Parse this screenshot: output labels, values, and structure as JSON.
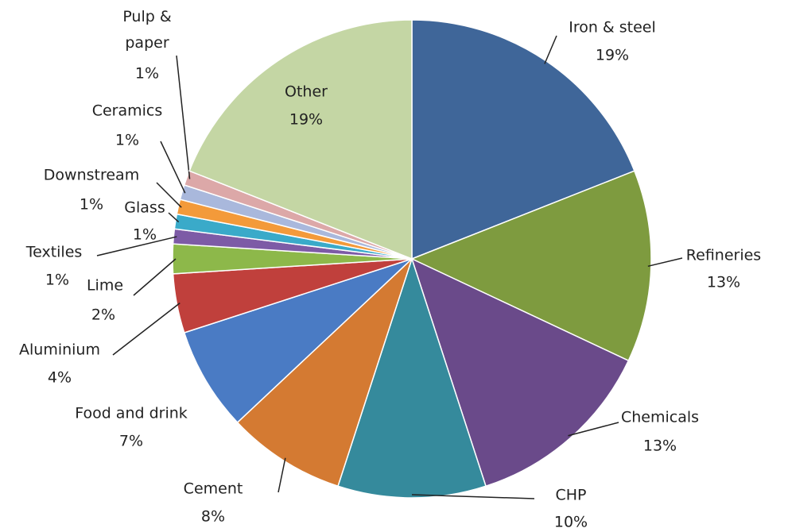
{
  "chart_data": {
    "type": "pie",
    "categories": [
      "Iron & steel",
      "Refineries",
      "Chemicals",
      "CHP",
      "Cement",
      "Food and drink",
      "Aluminium",
      "Lime",
      "Textiles",
      "Glass",
      "Downstream",
      "Ceramics",
      "Pulp & paper",
      "Other"
    ],
    "values": [
      19,
      13,
      13,
      10,
      8,
      7,
      4,
      2,
      1,
      1,
      1,
      1,
      1,
      19
    ],
    "value_labels": [
      "19%",
      "13%",
      "13%",
      "10%",
      "8%",
      "7%",
      "4%",
      "2%",
      "1%",
      "1%",
      "1%",
      "1%",
      "1%",
      "19%"
    ],
    "colors": [
      "#3f6699",
      "#7e9b3f",
      "#6a4a8a",
      "#358a9c",
      "#d47a32",
      "#4a7bc4",
      "#c0403c",
      "#8db84a",
      "#7d5ba6",
      "#3aaac9",
      "#f39a3a",
      "#a9b8dc",
      "#dca8a8",
      "#c4d6a4"
    ]
  }
}
